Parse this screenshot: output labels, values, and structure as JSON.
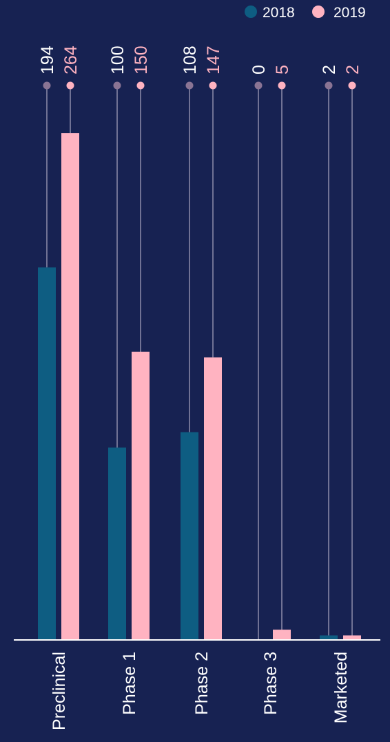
{
  "chart_data": {
    "type": "bar",
    "categories": [
      "Preclinical",
      "Phase 1",
      "Phase 2",
      "Phase 3",
      "Marketed"
    ],
    "series": [
      {
        "name": "2018",
        "values": [
          194,
          100,
          108,
          0,
          2
        ],
        "color": "#0e5d82",
        "marker_color": "#8a7494"
      },
      {
        "name": "2019",
        "values": [
          264,
          150,
          147,
          5,
          2
        ],
        "color": "#ffb3c1",
        "marker_color": "#ffb3c1"
      }
    ],
    "legend": {
      "position": "top-right",
      "entries": [
        "2018",
        "2019"
      ]
    },
    "ylim": [
      0,
      300
    ],
    "grid": false,
    "background": "#172252",
    "text_color": "#ffffff"
  }
}
